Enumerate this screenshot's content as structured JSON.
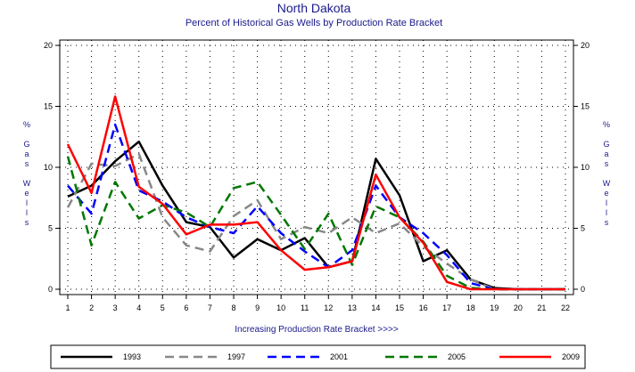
{
  "chart_data": {
    "type": "line",
    "title": "North Dakota",
    "subtitle": "Percent of Historical Gas Wells by Production Rate Bracket",
    "xlabel": "Increasing Production Rate Bracket >>>>",
    "ylabel": "% Gas Wells",
    "ylabel_chars": [
      "%",
      "",
      "G",
      "a",
      "s",
      "",
      "W",
      "e",
      "l",
      "l",
      "s"
    ],
    "x": [
      1,
      2,
      3,
      4,
      5,
      6,
      7,
      8,
      9,
      10,
      11,
      12,
      13,
      14,
      15,
      16,
      17,
      18,
      19,
      20,
      21,
      22
    ],
    "xlim": [
      1,
      22
    ],
    "ylim": [
      0,
      20
    ],
    "yticks": [
      0,
      5,
      10,
      15,
      20
    ],
    "grid": true,
    "legend_position": "bottom",
    "series": [
      {
        "name": "1993",
        "color": "#000000",
        "dash": "solid",
        "values": [
          7.6,
          8.5,
          10.5,
          12.1,
          8.5,
          5.5,
          5.1,
          2.6,
          4.1,
          3.2,
          4.2,
          1.8,
          2.3,
          10.7,
          7.7,
          2.3,
          3.2,
          0.8,
          0.1,
          0.0,
          0.0,
          0.0
        ]
      },
      {
        "name": "1997",
        "color": "#888888",
        "dash": "dashed",
        "values": [
          6.7,
          10.3,
          10.1,
          11.1,
          5.9,
          3.6,
          3.1,
          6.0,
          7.3,
          4.1,
          5.1,
          4.6,
          5.9,
          4.6,
          5.4,
          3.5,
          2.1,
          0.8,
          0.0,
          0.0,
          0.0,
          0.0
        ]
      },
      {
        "name": "2001",
        "color": "#0000ff",
        "dash": "dashed",
        "values": [
          8.5,
          6.2,
          13.5,
          8.1,
          7.2,
          5.9,
          5.1,
          4.6,
          6.8,
          4.6,
          3.1,
          1.8,
          3.2,
          8.5,
          5.9,
          4.6,
          2.8,
          0.5,
          0.0,
          0.0,
          0.0,
          0.0
        ]
      },
      {
        "name": "2005",
        "color": "#007700",
        "dash": "dashed",
        "values": [
          10.9,
          3.6,
          8.8,
          5.8,
          6.9,
          6.3,
          5.1,
          8.3,
          8.8,
          6.1,
          3.3,
          6.2,
          2.0,
          6.8,
          5.9,
          3.9,
          1.1,
          0.1,
          0.0,
          0.0,
          0.0,
          0.0
        ]
      },
      {
        "name": "2009",
        "color": "#ff0000",
        "dash": "solid",
        "values": [
          11.9,
          7.9,
          15.8,
          8.4,
          7.0,
          4.5,
          5.3,
          5.3,
          5.5,
          3.2,
          1.6,
          1.8,
          2.3,
          9.4,
          5.9,
          3.8,
          0.6,
          0.0,
          0.0,
          0.0,
          0.0,
          0.0
        ]
      }
    ]
  }
}
